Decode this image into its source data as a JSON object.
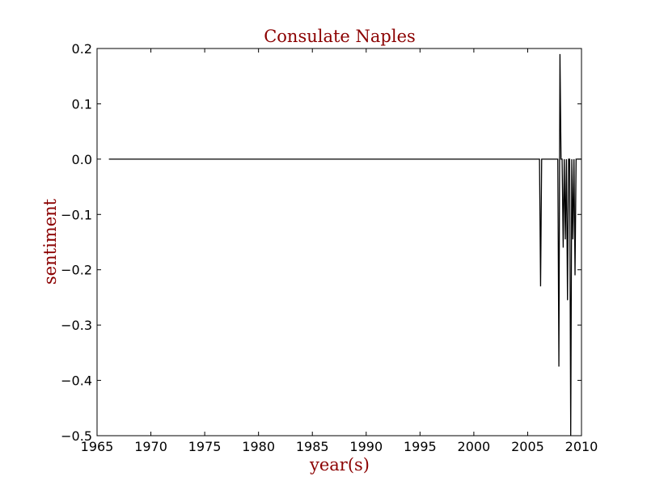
{
  "chart_data": {
    "type": "line",
    "title": "Consulate Naples",
    "xlabel": "year(s)",
    "ylabel": "sentiment",
    "xlim": [
      1965,
      2010
    ],
    "ylim": [
      -0.5,
      0.2
    ],
    "x_ticks": [
      1965,
      1970,
      1975,
      1980,
      1985,
      1990,
      1995,
      2000,
      2005,
      2010
    ],
    "x_tick_labels": [
      "1965",
      "1970",
      "1975",
      "1980",
      "1985",
      "1990",
      "1995",
      "2000",
      "2005",
      "2010"
    ],
    "y_ticks": [
      0.2,
      0.1,
      0.0,
      -0.1,
      -0.2,
      -0.3,
      -0.4,
      -0.5
    ],
    "y_tick_labels": [
      "0.2",
      "0.1",
      "0.0",
      "−0.1",
      "−0.2",
      "−0.3",
      "−0.4",
      "−0.5"
    ],
    "grid": false,
    "line_color": "#000000",
    "label_color": "#8b0000",
    "series": [
      {
        "x": [
          1966.1,
          2006.1,
          2006.2,
          2006.3,
          2007.8,
          2007.9,
          2008.0,
          2008.1,
          2008.2,
          2008.3,
          2008.4,
          2008.5,
          2008.6,
          2008.7,
          2008.8,
          2008.9,
          2009.0,
          2009.1,
          2009.2,
          2009.3,
          2009.4,
          2009.5,
          2009.6,
          2009.7,
          2009.8,
          2009.9,
          2010.0
        ],
        "y": [
          0.0,
          0.0,
          -0.23,
          0.0,
          0.0,
          -0.375,
          0.19,
          0.0,
          0.0,
          -0.16,
          0.0,
          -0.145,
          0.0,
          -0.255,
          0.0,
          0.0,
          -0.5,
          0.0,
          -0.145,
          0.0,
          -0.21,
          0.0,
          0.0,
          0.0,
          0.0,
          0.0,
          0.0
        ]
      }
    ]
  }
}
